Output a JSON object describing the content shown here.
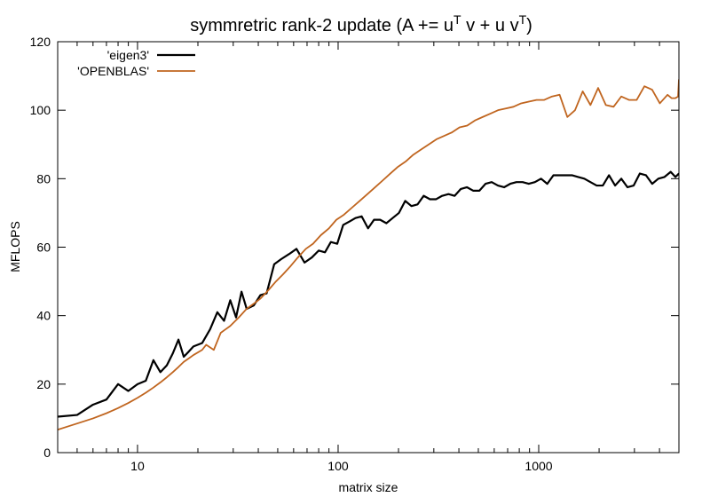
{
  "chart_data": {
    "type": "line",
    "title": "symmretric rank-2 update (A += u",
    "title_sup1": "T",
    "title_mid": " v + u v",
    "title_sup2": "T",
    "title_end": ")",
    "xlabel": "matrix size",
    "ylabel": "MFLOPS",
    "x_scale": "log",
    "xlim": [
      4,
      5000
    ],
    "ylim": [
      0,
      120
    ],
    "x_ticks": [
      {
        "value": 10,
        "label": "10"
      },
      {
        "value": 100,
        "label": "100"
      },
      {
        "value": 1000,
        "label": "1000"
      }
    ],
    "y_ticks": [
      {
        "value": 0,
        "label": "0"
      },
      {
        "value": 20,
        "label": "20"
      },
      {
        "value": 40,
        "label": "40"
      },
      {
        "value": 60,
        "label": "60"
      },
      {
        "value": 80,
        "label": "80"
      },
      {
        "value": 100,
        "label": "100"
      },
      {
        "value": 120,
        "label": "120"
      }
    ],
    "grid": false,
    "legend_position": "top-left",
    "series": [
      {
        "name": "'eigen3'",
        "color": "#000000",
        "points": [
          [
            4,
            10.5
          ],
          [
            5,
            11
          ],
          [
            6,
            14
          ],
          [
            7,
            15.5
          ],
          [
            8,
            20
          ],
          [
            9,
            18
          ],
          [
            10,
            20
          ],
          [
            11,
            21
          ],
          [
            12,
            27
          ],
          [
            13,
            23.5
          ],
          [
            14,
            25.5
          ],
          [
            15,
            29
          ],
          [
            16,
            33
          ],
          [
            17,
            28
          ],
          [
            18,
            29.5
          ],
          [
            19,
            31
          ],
          [
            21,
            32
          ],
          [
            23,
            36
          ],
          [
            25,
            41
          ],
          [
            27,
            38.5
          ],
          [
            29,
            44.5
          ],
          [
            31,
            39.5
          ],
          [
            33,
            47
          ],
          [
            35,
            42
          ],
          [
            38,
            43
          ],
          [
            41,
            46
          ],
          [
            44,
            46.5
          ],
          [
            48,
            55
          ],
          [
            52,
            56.5
          ],
          [
            57,
            58
          ],
          [
            62,
            59.5
          ],
          [
            68,
            55.5
          ],
          [
            74,
            57
          ],
          [
            80,
            59
          ],
          [
            86,
            58.5
          ],
          [
            92,
            61.5
          ],
          [
            99,
            61
          ],
          [
            106,
            66.5
          ],
          [
            114,
            67.5
          ],
          [
            122,
            68.5
          ],
          [
            131,
            69
          ],
          [
            141,
            65.5
          ],
          [
            151,
            68
          ],
          [
            162,
            68
          ],
          [
            174,
            67
          ],
          [
            187,
            68.5
          ],
          [
            201,
            70
          ],
          [
            216,
            73.5
          ],
          [
            232,
            72
          ],
          [
            249,
            72.5
          ],
          [
            267,
            75
          ],
          [
            287,
            74
          ],
          [
            308,
            74
          ],
          [
            330,
            75
          ],
          [
            355,
            75.5
          ],
          [
            381,
            75
          ],
          [
            409,
            77
          ],
          [
            439,
            77.5
          ],
          [
            471,
            76.5
          ],
          [
            506,
            76.5
          ],
          [
            543,
            78.5
          ],
          [
            583,
            79
          ],
          [
            626,
            78
          ],
          [
            672,
            77.5
          ],
          [
            721,
            78.5
          ],
          [
            774,
            79
          ],
          [
            831,
            79
          ],
          [
            892,
            78.5
          ],
          [
            957,
            79
          ],
          [
            1027,
            80
          ],
          [
            1103,
            78.5
          ],
          [
            1184,
            81
          ],
          [
            1271,
            81
          ],
          [
            1364,
            81
          ],
          [
            1464,
            81
          ],
          [
            1572,
            80.5
          ],
          [
            1687,
            80
          ],
          [
            1811,
            79
          ],
          [
            1944,
            78
          ],
          [
            2087,
            78
          ],
          [
            2240,
            81
          ],
          [
            2404,
            78
          ],
          [
            2581,
            80
          ],
          [
            2770,
            77.5
          ],
          [
            2974,
            78
          ],
          [
            3192,
            81.5
          ],
          [
            3426,
            81
          ],
          [
            3678,
            78.5
          ],
          [
            3948,
            80
          ],
          [
            4237,
            80.5
          ],
          [
            4548,
            82
          ],
          [
            4800,
            80.5
          ],
          [
            5000,
            81.5
          ]
        ]
      },
      {
        "name": "'OPENBLAS'",
        "color": "#c0651f",
        "points": [
          [
            4,
            6.7
          ],
          [
            5,
            8.5
          ],
          [
            6,
            10
          ],
          [
            7,
            11.5
          ],
          [
            8,
            13
          ],
          [
            9,
            14.5
          ],
          [
            10,
            16
          ],
          [
            11,
            17.5
          ],
          [
            12,
            19
          ],
          [
            13,
            20.5
          ],
          [
            14,
            22
          ],
          [
            15,
            23.5
          ],
          [
            16,
            25
          ],
          [
            17,
            26.5
          ],
          [
            18,
            27.5
          ],
          [
            19,
            28.5
          ],
          [
            21,
            30
          ],
          [
            22,
            31.5
          ],
          [
            24,
            30
          ],
          [
            26,
            35
          ],
          [
            29,
            37
          ],
          [
            32,
            39.5
          ],
          [
            35,
            42
          ],
          [
            38,
            43.5
          ],
          [
            41,
            45
          ],
          [
            45,
            47.5
          ],
          [
            49,
            50
          ],
          [
            53,
            52
          ],
          [
            58,
            54.5
          ],
          [
            63,
            57
          ],
          [
            69,
            59.5
          ],
          [
            75,
            61
          ],
          [
            82,
            63.5
          ],
          [
            90,
            65.5
          ],
          [
            98,
            68
          ],
          [
            107,
            69.5
          ],
          [
            117,
            71.5
          ],
          [
            128,
            73.5
          ],
          [
            140,
            75.5
          ],
          [
            153,
            77.5
          ],
          [
            167,
            79.5
          ],
          [
            182,
            81.5
          ],
          [
            199,
            83.5
          ],
          [
            217,
            85
          ],
          [
            237,
            87
          ],
          [
            259,
            88.5
          ],
          [
            283,
            90
          ],
          [
            309,
            91.5
          ],
          [
            338,
            92.5
          ],
          [
            369,
            93.5
          ],
          [
            403,
            95
          ],
          [
            440,
            95.5
          ],
          [
            481,
            97
          ],
          [
            525,
            98
          ],
          [
            574,
            99
          ],
          [
            627,
            100
          ],
          [
            685,
            100.5
          ],
          [
            748,
            101
          ],
          [
            817,
            102
          ],
          [
            893,
            102.5
          ],
          [
            975,
            103
          ],
          [
            1065,
            103
          ],
          [
            1164,
            104
          ],
          [
            1271,
            104.5
          ],
          [
            1389,
            98
          ],
          [
            1517,
            100
          ],
          [
            1657,
            105.5
          ],
          [
            1811,
            101.5
          ],
          [
            1978,
            106.5
          ],
          [
            2161,
            101.5
          ],
          [
            2361,
            101
          ],
          [
            2579,
            104
          ],
          [
            2818,
            103
          ],
          [
            3079,
            103
          ],
          [
            3364,
            107
          ],
          [
            3675,
            106
          ],
          [
            4015,
            102
          ],
          [
            4386,
            104.5
          ],
          [
            4600,
            103.5
          ],
          [
            4800,
            103.5
          ],
          [
            4950,
            104
          ],
          [
            5000,
            109
          ]
        ]
      }
    ]
  }
}
